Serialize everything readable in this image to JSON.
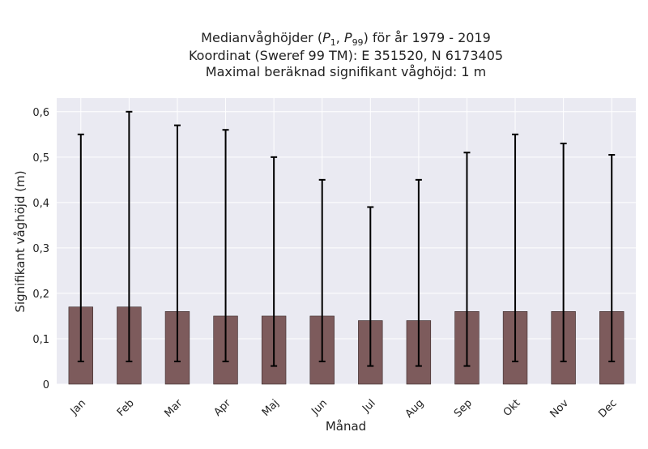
{
  "chart_data": {
    "type": "bar",
    "title_lines": [
      "Medianvåghöjder (P₁, P₉₉) för år 1979 - 2019",
      "Koordinat (Sweref 99 TM): E 351520, N 6173405",
      "Maximal beräknad signifikant våghöjd: 1 m"
    ],
    "xlabel": "Månad",
    "ylabel": "Signifikant våghöjd (m)",
    "categories": [
      "Jan",
      "Feb",
      "Mar",
      "Apr",
      "Maj",
      "Jun",
      "Jul",
      "Aug",
      "Sep",
      "Okt",
      "Nov",
      "Dec"
    ],
    "values": [
      0.17,
      0.17,
      0.16,
      0.15,
      0.15,
      0.15,
      0.14,
      0.14,
      0.16,
      0.16,
      0.16,
      0.16
    ],
    "error_low": [
      0.05,
      0.05,
      0.05,
      0.05,
      0.04,
      0.05,
      0.04,
      0.04,
      0.04,
      0.05,
      0.05,
      0.05
    ],
    "error_high": [
      0.55,
      0.6,
      0.57,
      0.56,
      0.5,
      0.45,
      0.39,
      0.45,
      0.51,
      0.55,
      0.53,
      0.505
    ],
    "ylim": [
      0,
      0.63
    ],
    "yticks": [
      0,
      0.1,
      0.2,
      0.3,
      0.4,
      0.5,
      0.6
    ],
    "ytick_labels": [
      "0",
      "0,1",
      "0,2",
      "0,3",
      "0,4",
      "0,5",
      "0,6"
    ],
    "grid": true,
    "legend": "none",
    "colors": {
      "bar": "#7d5b5c",
      "bar_edge": "#3a2a2a",
      "plot_background": "#eaeaf2",
      "grid": "#ffffff",
      "errorbar": "#000000"
    }
  }
}
